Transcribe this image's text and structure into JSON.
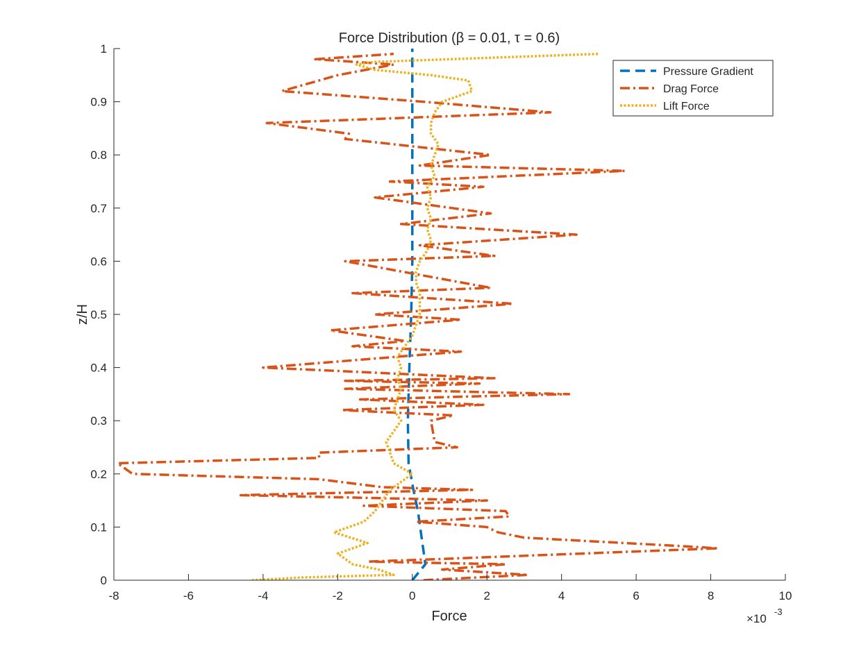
{
  "chart_data": {
    "type": "line",
    "title": "Force Distribution (β = 0.01, τ = 0.6)",
    "xlabel": "Force",
    "ylabel": "z/H",
    "x_exponent_label": "×10",
    "x_exponent_power": "-3",
    "xlim": [
      -0.008,
      0.01
    ],
    "ylim": [
      0,
      1
    ],
    "x_ticks": [
      -0.008,
      -0.006,
      -0.004,
      -0.002,
      0,
      0.002,
      0.004,
      0.006,
      0.008,
      0.01
    ],
    "x_tick_labels": [
      "-8",
      "-6",
      "-4",
      "-2",
      "0",
      "2",
      "4",
      "6",
      "8",
      "10"
    ],
    "y_ticks": [
      0,
      0.1,
      0.2,
      0.3,
      0.4,
      0.5,
      0.6,
      0.7,
      0.8,
      0.9,
      1
    ],
    "y_tick_labels": [
      "0",
      "0.1",
      "0.2",
      "0.3",
      "0.4",
      "0.5",
      "0.6",
      "0.7",
      "0.8",
      "0.9",
      "1"
    ],
    "grid": false,
    "legend_position": "top-right",
    "series": [
      {
        "name": "Pressure Gradient",
        "color": "#0072BD",
        "style": "dashed",
        "points": [
          [
            0.0,
            0.0
          ],
          [
            0.00035,
            0.03
          ],
          [
            0.00025,
            0.08
          ],
          [
            0.00015,
            0.13
          ],
          [
            3e-05,
            0.17
          ],
          [
            -0.0001,
            0.22
          ],
          [
            -0.00012,
            0.3
          ],
          [
            -8e-05,
            0.4
          ],
          [
            -3e-05,
            0.5
          ],
          [
            0.0,
            0.6
          ],
          [
            0.0,
            0.7
          ],
          [
            0.0,
            0.8
          ],
          [
            0.0,
            0.9
          ],
          [
            0.0,
            1.0
          ]
        ]
      },
      {
        "name": "Drag Force",
        "color": "#D95319",
        "style": "dashdot",
        "points": [
          [
            0.0003,
            0.0
          ],
          [
            0.0031,
            0.01
          ],
          [
            0.0008,
            0.02
          ],
          [
            0.0025,
            0.03
          ],
          [
            -0.0012,
            0.035
          ],
          [
            0.0008,
            0.04
          ],
          [
            0.0082,
            0.06
          ],
          [
            0.007,
            0.065
          ],
          [
            0.003,
            0.08
          ],
          [
            0.0023,
            0.09
          ],
          [
            0.002,
            0.1
          ],
          [
            0.0001,
            0.11
          ],
          [
            0.0026,
            0.12
          ],
          [
            0.0025,
            0.13
          ],
          [
            -0.0013,
            0.14
          ],
          [
            0.002,
            0.15
          ],
          [
            -0.0046,
            0.16
          ],
          [
            0.0016,
            0.17
          ],
          [
            -0.0008,
            0.175
          ],
          [
            -0.0025,
            0.19
          ],
          [
            -0.0075,
            0.2
          ],
          [
            -0.0079,
            0.22
          ],
          [
            -0.0025,
            0.23
          ],
          [
            -0.0025,
            0.24
          ],
          [
            0.0012,
            0.25
          ],
          [
            0.0006,
            0.26
          ],
          [
            0.0005,
            0.3
          ],
          [
            0.0011,
            0.31
          ],
          [
            -0.0019,
            0.32
          ],
          [
            0.0019,
            0.33
          ],
          [
            -0.0014,
            0.34
          ],
          [
            0.0012,
            0.345
          ],
          [
            0.0042,
            0.35
          ],
          [
            -0.0018,
            0.36
          ],
          [
            0.0018,
            0.37
          ],
          [
            -0.0018,
            0.375
          ],
          [
            0.0022,
            0.38
          ],
          [
            -0.004,
            0.4
          ],
          [
            0.0013,
            0.43
          ],
          [
            -0.0016,
            0.44
          ],
          [
            -0.0002,
            0.45
          ],
          [
            -0.0022,
            0.47
          ],
          [
            0.0013,
            0.49
          ],
          [
            -0.001,
            0.5
          ],
          [
            0.0027,
            0.52
          ],
          [
            -0.0016,
            0.54
          ],
          [
            0.0021,
            0.55
          ],
          [
            -0.0018,
            0.6
          ],
          [
            0.0022,
            0.61
          ],
          [
            0.0002,
            0.63
          ],
          [
            0.0044,
            0.65
          ],
          [
            -0.0003,
            0.67
          ],
          [
            0.0021,
            0.69
          ],
          [
            -0.001,
            0.72
          ],
          [
            0.0019,
            0.74
          ],
          [
            -0.0006,
            0.75
          ],
          [
            0.0057,
            0.77
          ],
          [
            0.0002,
            0.78
          ],
          [
            0.0021,
            0.8
          ],
          [
            -0.0018,
            0.83
          ],
          [
            -0.0017,
            0.84
          ],
          [
            -0.0039,
            0.86
          ],
          [
            0.0037,
            0.88
          ],
          [
            0.0003,
            0.9
          ],
          [
            -0.0035,
            0.92
          ],
          [
            -0.002,
            0.95
          ],
          [
            -0.0005,
            0.97
          ],
          [
            -0.0026,
            0.98
          ],
          [
            -0.0005,
            0.99
          ]
        ]
      },
      {
        "name": "Lift Force",
        "color": "#EDB120",
        "style": "dotted",
        "points": [
          [
            -0.0043,
            0.0
          ],
          [
            -0.003,
            0.005
          ],
          [
            -0.0005,
            0.01
          ],
          [
            -0.0009,
            0.02
          ],
          [
            -0.0016,
            0.03
          ],
          [
            -0.002,
            0.05
          ],
          [
            -0.0012,
            0.07
          ],
          [
            -0.0021,
            0.09
          ],
          [
            -0.0013,
            0.11
          ],
          [
            -0.001,
            0.13
          ],
          [
            -0.0008,
            0.15
          ],
          [
            -0.0006,
            0.17
          ],
          [
            -0.0003,
            0.185
          ],
          [
            0.0,
            0.2
          ],
          [
            -0.0005,
            0.22
          ],
          [
            -0.0006,
            0.24
          ],
          [
            -0.0007,
            0.26
          ],
          [
            -0.0005,
            0.28
          ],
          [
            -0.0003,
            0.3
          ],
          [
            -0.0005,
            0.32
          ],
          [
            -0.0004,
            0.34
          ],
          [
            -0.0003,
            0.36
          ],
          [
            -0.0004,
            0.38
          ],
          [
            -0.0003,
            0.4
          ],
          [
            -0.0004,
            0.42
          ],
          [
            -0.0002,
            0.44
          ],
          [
            0.0,
            0.46
          ],
          [
            0.0001,
            0.48
          ],
          [
            0.0002,
            0.5
          ],
          [
            0.0002,
            0.52
          ],
          [
            0.0002,
            0.54
          ],
          [
            0.0001,
            0.56
          ],
          [
            0.0001,
            0.58
          ],
          [
            0.0002,
            0.6
          ],
          [
            0.0004,
            0.62
          ],
          [
            0.0005,
            0.64
          ],
          [
            0.0004,
            0.66
          ],
          [
            0.0005,
            0.68
          ],
          [
            0.0004,
            0.7
          ],
          [
            0.0005,
            0.72
          ],
          [
            0.0004,
            0.74
          ],
          [
            0.0006,
            0.76
          ],
          [
            0.0005,
            0.78
          ],
          [
            0.0006,
            0.8
          ],
          [
            0.0007,
            0.82
          ],
          [
            0.0005,
            0.84
          ],
          [
            0.0005,
            0.86
          ],
          [
            0.0006,
            0.88
          ],
          [
            0.0008,
            0.9
          ],
          [
            0.0016,
            0.92
          ],
          [
            0.0015,
            0.94
          ],
          [
            0.0005,
            0.95
          ],
          [
            -0.001,
            0.96
          ],
          [
            -0.0015,
            0.97
          ],
          [
            -0.001,
            0.975
          ],
          [
            0.005,
            0.99
          ]
        ]
      }
    ]
  }
}
